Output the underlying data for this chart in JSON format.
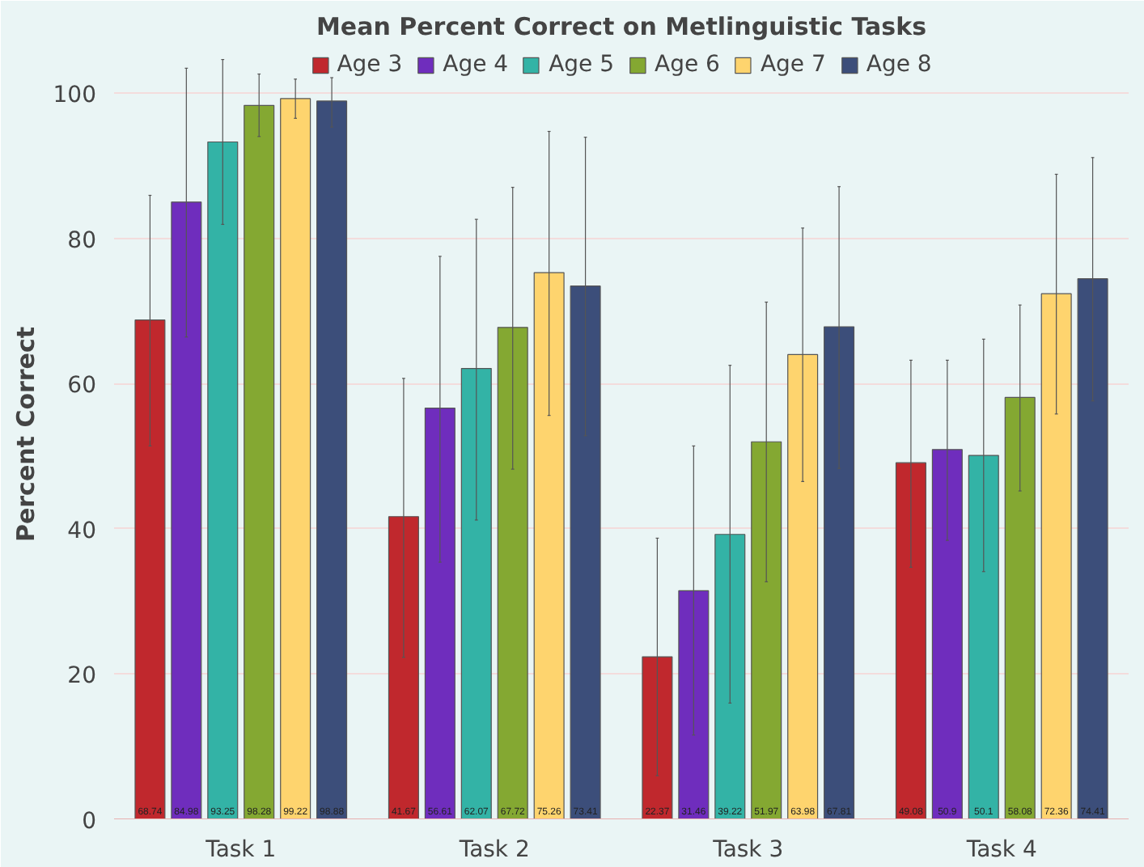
{
  "chart_data": {
    "type": "bar",
    "title": "Mean Percent Correct on Metlinguistic Tasks",
    "ylabel": "Percent Correct",
    "categories": [
      "Task 1",
      "Task 2",
      "Task 3",
      "Task 4"
    ],
    "ylim": [
      0,
      106
    ],
    "yticks": [
      0,
      20,
      40,
      60,
      80,
      100
    ],
    "grid": "y",
    "legend": "top",
    "series": [
      {
        "name": "Age 3",
        "color": "#c0282d",
        "values": [
          68.74,
          41.67,
          22.37,
          49.08
        ],
        "value_labels": [
          "68.74",
          "41.67",
          "22.37",
          "49.08"
        ],
        "errors": [
          [
            51.4,
            85.9
          ],
          [
            22.3,
            60.7
          ],
          [
            6.0,
            38.7
          ],
          [
            34.7,
            63.2
          ]
        ]
      },
      {
        "name": "Age 4",
        "color": "#6f2dbd",
        "values": [
          84.98,
          56.61,
          31.46,
          50.9
        ],
        "value_labels": [
          "84.98",
          "56.61",
          "31.46",
          "50.9"
        ],
        "errors": [
          [
            66.4,
            103.4
          ],
          [
            35.4,
            77.5
          ],
          [
            11.6,
            51.4
          ],
          [
            38.4,
            63.2
          ]
        ]
      },
      {
        "name": "Age 5",
        "color": "#33b3a6",
        "values": [
          93.25,
          62.07,
          39.22,
          50.1
        ],
        "value_labels": [
          "93.25",
          "62.07",
          "39.22",
          "50.1"
        ],
        "errors": [
          [
            81.9,
            104.6
          ],
          [
            41.2,
            82.6
          ],
          [
            16.0,
            62.5
          ],
          [
            34.1,
            66.1
          ]
        ]
      },
      {
        "name": "Age 6",
        "color": "#84a832",
        "values": [
          98.28,
          67.72,
          51.97,
          58.08
        ],
        "value_labels": [
          "98.28",
          "67.72",
          "51.97",
          "58.08"
        ],
        "errors": [
          [
            94.0,
            102.6
          ],
          [
            48.2,
            87.0
          ],
          [
            32.7,
            71.2
          ],
          [
            45.2,
            70.8
          ]
        ]
      },
      {
        "name": "Age 7",
        "color": "#fed46e",
        "values": [
          99.22,
          75.26,
          63.98,
          72.36
        ],
        "value_labels": [
          "99.22",
          "75.26",
          "63.98",
          "72.36"
        ],
        "errors": [
          [
            96.5,
            101.9
          ],
          [
            55.6,
            94.7
          ],
          [
            46.5,
            81.4
          ],
          [
            55.8,
            88.8
          ]
        ]
      },
      {
        "name": "Age 8",
        "color": "#3c4e7a",
        "values": [
          98.88,
          73.41,
          67.81,
          74.41
        ],
        "value_labels": [
          "98.88",
          "73.41",
          "67.81",
          "74.41"
        ],
        "errors": [
          [
            95.3,
            102.1
          ],
          [
            52.8,
            93.9
          ],
          [
            48.3,
            87.1
          ],
          [
            57.6,
            91.1
          ]
        ]
      }
    ]
  }
}
